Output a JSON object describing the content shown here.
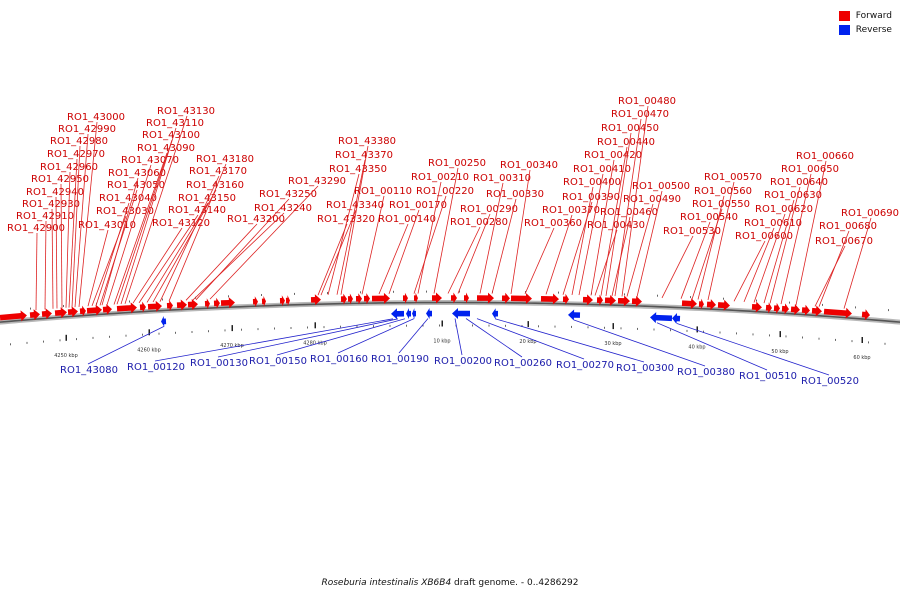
{
  "legend": {
    "forward_label": "Forward",
    "reverse_label": "Reverse",
    "forward_color": "#ee0000",
    "reverse_color": "#0022ee"
  },
  "caption": {
    "organism": "Roseburia intestinalis XB6B4",
    "suffix": " draft genome. - 0..4286292"
  },
  "scale_ticks": [
    "4250 kbp",
    "4260 kbp",
    "4270 kbp",
    "4280 kbp",
    "10 kbp",
    "20 kbp",
    "30 kbp",
    "40 kbp",
    "50 kbp",
    "60 kbp"
  ],
  "forward_labels": [
    "RO1_42900",
    "RO1_42910",
    "RO1_42930",
    "RO1_42940",
    "RO1_42950",
    "RO1_42960",
    "RO1_42970",
    "RO1_42980",
    "RO1_42990",
    "RO1_43000",
    "RO1_43010",
    "RO1_43030",
    "RO1_43040",
    "RO1_43050",
    "RO1_43060",
    "RO1_43070",
    "RO1_43090",
    "RO1_43100",
    "RO1_43110",
    "RO1_43130",
    "RO1_43120",
    "RO1_43140",
    "RO1_43150",
    "RO1_43160",
    "RO1_43170",
    "RO1_43180",
    "RO1_43200",
    "RO1_43240",
    "RO1_43250",
    "RO1_43290",
    "RO1_43320",
    "RO1_43340",
    "RO1_43350",
    "RO1_43370",
    "RO1_43380",
    "RO1_00110",
    "RO1_00140",
    "RO1_00170",
    "RO1_00220",
    "RO1_00210",
    "RO1_00250",
    "RO1_00280",
    "RO1_00290",
    "RO1_00310",
    "RO1_00330",
    "RO1_00340",
    "RO1_00360",
    "RO1_00370",
    "RO1_00390",
    "RO1_00400",
    "RO1_00410",
    "RO1_00420",
    "RO1_00430",
    "RO1_00440",
    "RO1_00450",
    "RO1_00460",
    "RO1_00470",
    "RO1_00480",
    "RO1_00490",
    "RO1_00500",
    "RO1_00530",
    "RO1_00540",
    "RO1_00550",
    "RO1_00560",
    "RO1_00570",
    "RO1_00600",
    "RO1_00610",
    "RO1_00620",
    "RO1_00630",
    "RO1_00640",
    "RO1_00650",
    "RO1_00660",
    "RO1_00670",
    "RO1_00680",
    "RO1_00690"
  ],
  "reverse_labels": [
    "RO1_43080",
    "RO1_00120",
    "RO1_00130",
    "RO1_00150",
    "RO1_00160",
    "RO1_00190",
    "RO1_00200",
    "RO1_00260",
    "RO1_00270",
    "RO1_00300",
    "RO1_00380",
    "RO1_00510",
    "RO1_00520"
  ]
}
